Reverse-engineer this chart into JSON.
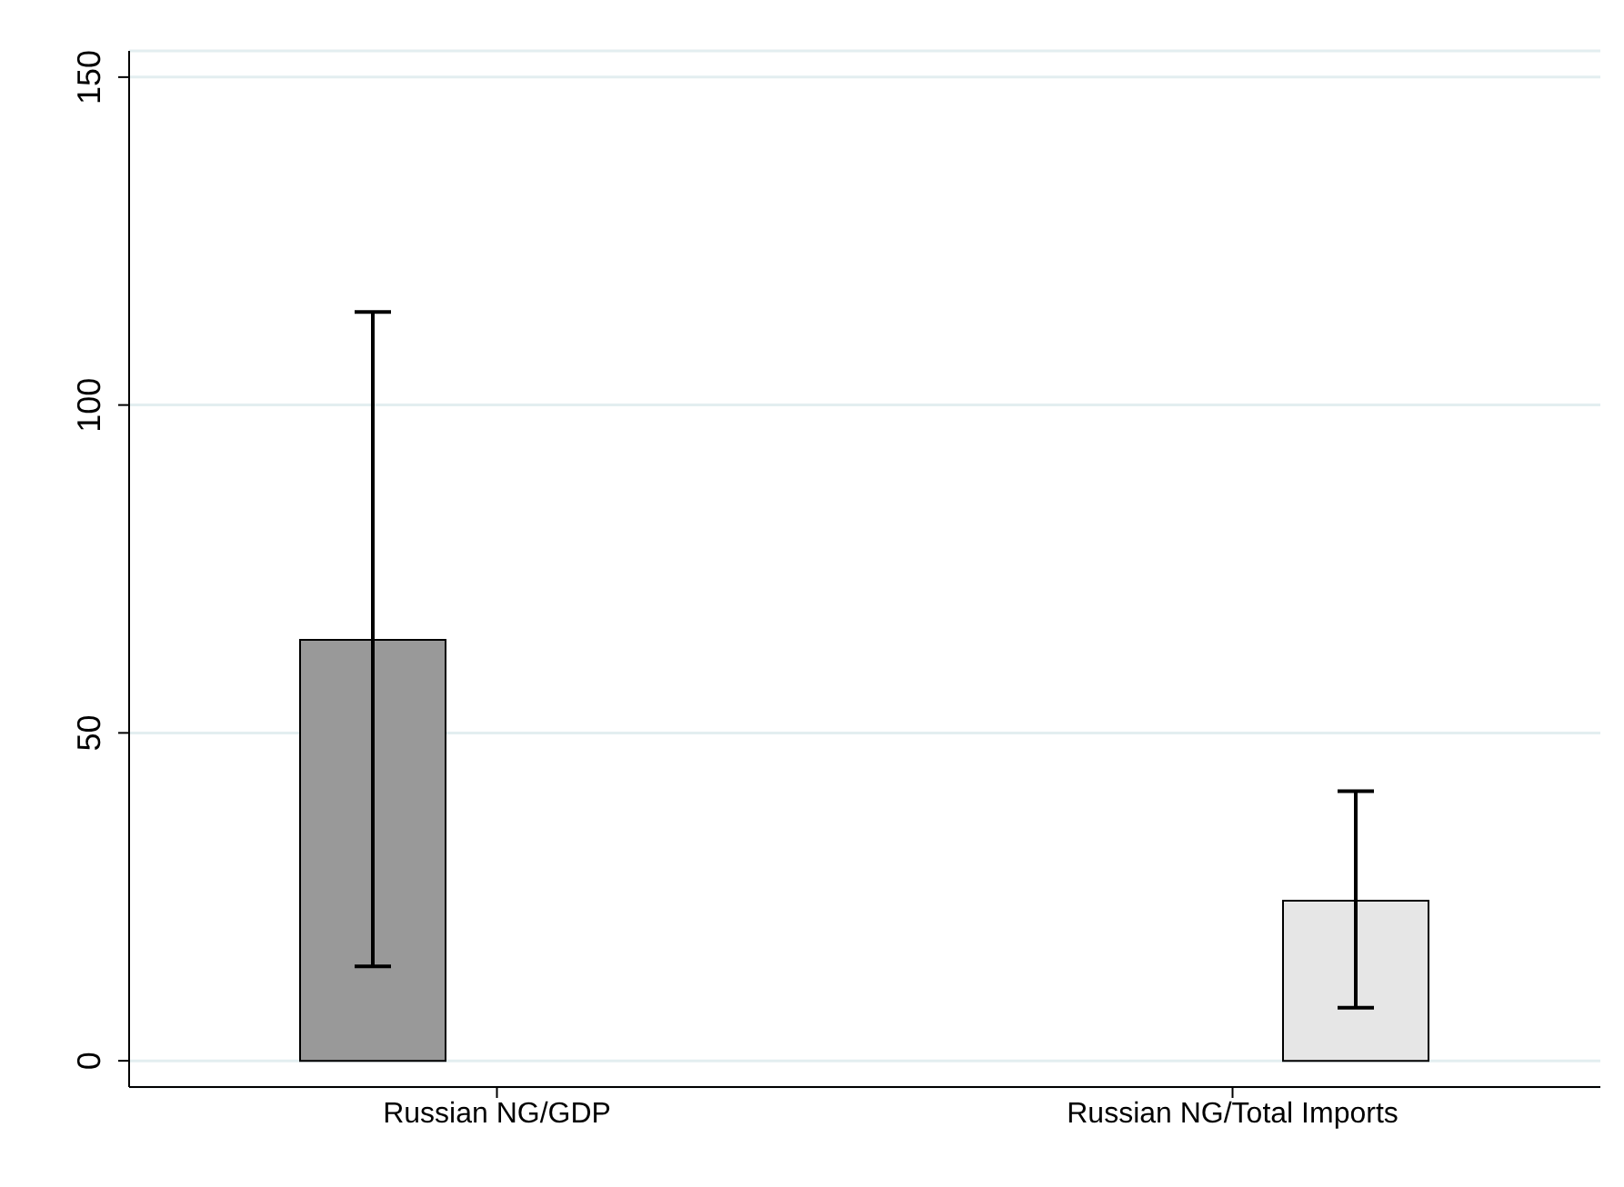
{
  "chart_data": {
    "type": "bar",
    "categories": [
      "Russian NG/GDP",
      "Russian NG/Total Imports"
    ],
    "series": [
      {
        "color": "#999999",
        "values": [
          64.2,
          null
        ],
        "errors": [
          [
            14.4,
            114.2
          ],
          null
        ]
      },
      {
        "color": "#e6e6e6",
        "values": [
          null,
          24.4
        ],
        "errors": [
          null,
          [
            8.1,
            41.1
          ]
        ]
      }
    ],
    "ylim": [
      -4,
      154
    ],
    "yticks": [
      0,
      50,
      100,
      150
    ],
    "grid": "y",
    "legend": false
  }
}
